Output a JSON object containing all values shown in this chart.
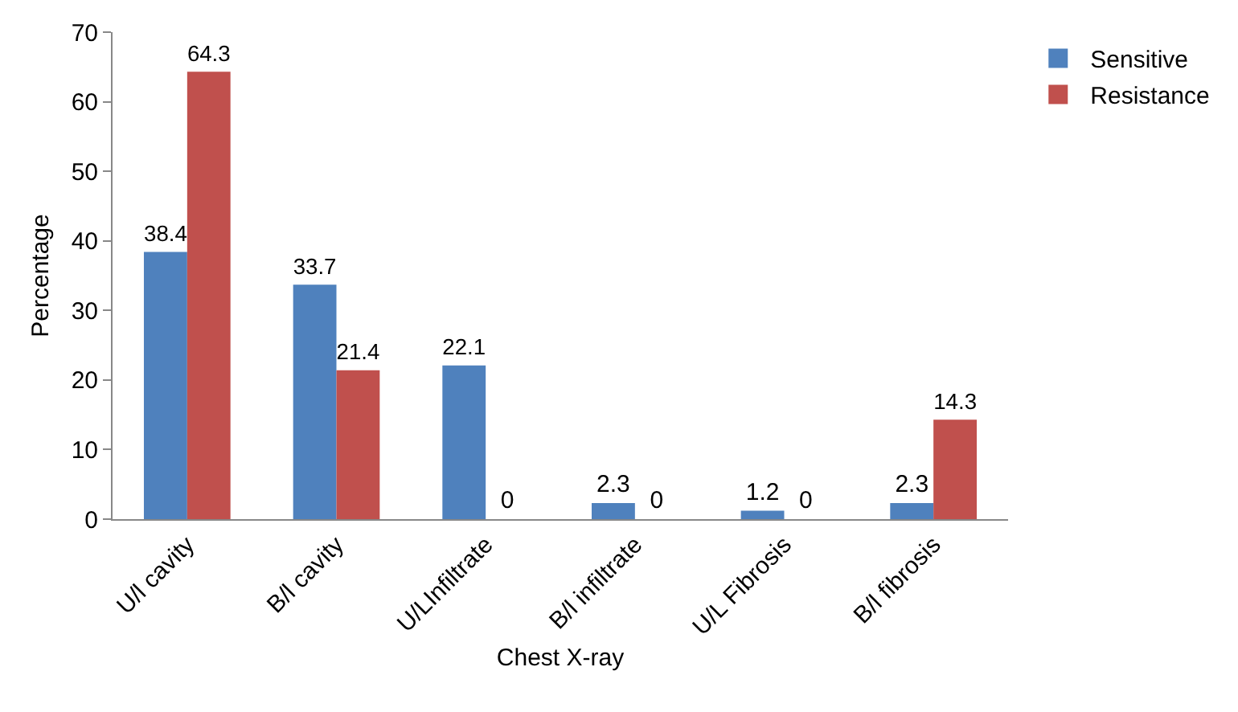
{
  "chart_data": {
    "type": "bar",
    "xlabel": "Chest X-ray",
    "ylabel": "Percentage",
    "categories": [
      "U/l cavity",
      "B/l cavity",
      "U/LInfiltrate",
      "B/l infiltrate",
      "U/L Fibrosis",
      "B/l fibrosis"
    ],
    "series": [
      {
        "name": "Sensitive",
        "color": "#4f81bd",
        "values": [
          38.4,
          33.7,
          22.1,
          2.3,
          1.2,
          2.3
        ]
      },
      {
        "name": "Resistance",
        "color": "#c0504d",
        "values": [
          64.3,
          21.4,
          0,
          0,
          0,
          14.3
        ]
      }
    ],
    "ylim": [
      0,
      70
    ],
    "yticks": [
      0,
      10,
      20,
      30,
      40,
      50,
      60,
      70
    ],
    "data_labels": true,
    "grid": false,
    "legend": "top right"
  }
}
